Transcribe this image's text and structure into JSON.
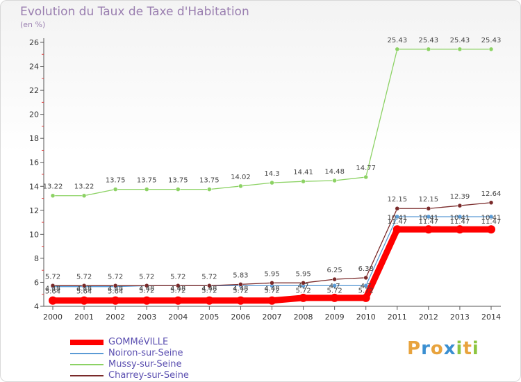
{
  "chart_data": {
    "type": "line",
    "title": "Evolution du Taux de Taxe d'Habitation",
    "subtitle": "(en %)",
    "xlabel": "",
    "ylabel": "",
    "ylim": [
      4,
      26
    ],
    "yticks": [
      4,
      6,
      8,
      10,
      12,
      14,
      16,
      18,
      20,
      22,
      24,
      26
    ],
    "categories": [
      "2000",
      "2001",
      "2002",
      "2003",
      "2004",
      "2005",
      "2006",
      "2007",
      "2008",
      "2009",
      "2010",
      "2011",
      "2012",
      "2013",
      "2014"
    ],
    "series": [
      {
        "name": "GOMMéVILLE",
        "color": "#ff0000",
        "values": [
          4.48,
          4.48,
          4.48,
          4.48,
          4.48,
          4.48,
          4.48,
          4.48,
          4.7,
          4.7,
          4.7,
          10.41,
          10.41,
          10.41,
          10.41
        ],
        "labels": [
          "4.48",
          "4.48",
          "4.48",
          "4.48",
          "4.48",
          "4.48",
          "4.48",
          "4.48",
          "4.7",
          "4.7",
          "4.7",
          "10.41",
          "10.41",
          "10.41",
          "10.41"
        ]
      },
      {
        "name": "Noiron-sur-Seine",
        "color": "#5b9bd5",
        "values": [
          5.64,
          5.64,
          5.64,
          5.72,
          5.72,
          5.72,
          5.72,
          5.72,
          5.72,
          5.72,
          5.72,
          11.47,
          11.47,
          11.47,
          11.47
        ],
        "labels": [
          "5.64",
          "5.64",
          "5.64",
          "5.72",
          "5.72",
          "5.72",
          "5.72",
          "5.72",
          "5.72",
          "5.72",
          "5.72",
          "11.47",
          "11.47",
          "11.47",
          "11.47"
        ]
      },
      {
        "name": "Mussy-sur-Seine",
        "color": "#8cd264",
        "values": [
          13.22,
          13.22,
          13.75,
          13.75,
          13.75,
          13.75,
          14.02,
          14.3,
          14.41,
          14.48,
          14.77,
          25.43,
          25.43,
          25.43,
          25.43
        ],
        "labels": [
          "13.22",
          "13.22",
          "13.75",
          "13.75",
          "13.75",
          "13.75",
          "14.02",
          "14.3",
          "14.41",
          "14.48",
          "14.77",
          "25.43",
          "25.43",
          "25.43",
          "25.43"
        ]
      },
      {
        "name": "Charrey-sur-Seine",
        "color": "#7a2a2a",
        "values": [
          5.72,
          5.72,
          5.72,
          5.72,
          5.72,
          5.72,
          5.83,
          5.95,
          5.95,
          6.25,
          6.38,
          12.15,
          12.15,
          12.39,
          12.64
        ],
        "labels": [
          "5.72",
          "5.72",
          "5.72",
          "5.72",
          "5.72",
          "5.72",
          "5.83",
          "5.95",
          "5.95",
          "6.25",
          "6.38",
          "12.15",
          "12.15",
          "12.39",
          "12.64"
        ]
      }
    ],
    "legend_position": "bottom-left",
    "grid": false
  },
  "brand": {
    "letters": [
      "P",
      "r",
      "o",
      "x",
      "i",
      "t",
      "i"
    ],
    "colors": [
      "#e8a33d",
      "#3a8fd1",
      "#e8a33d",
      "#3a8fd1",
      "#8cc540",
      "#e8a33d",
      "#8cc540"
    ]
  }
}
